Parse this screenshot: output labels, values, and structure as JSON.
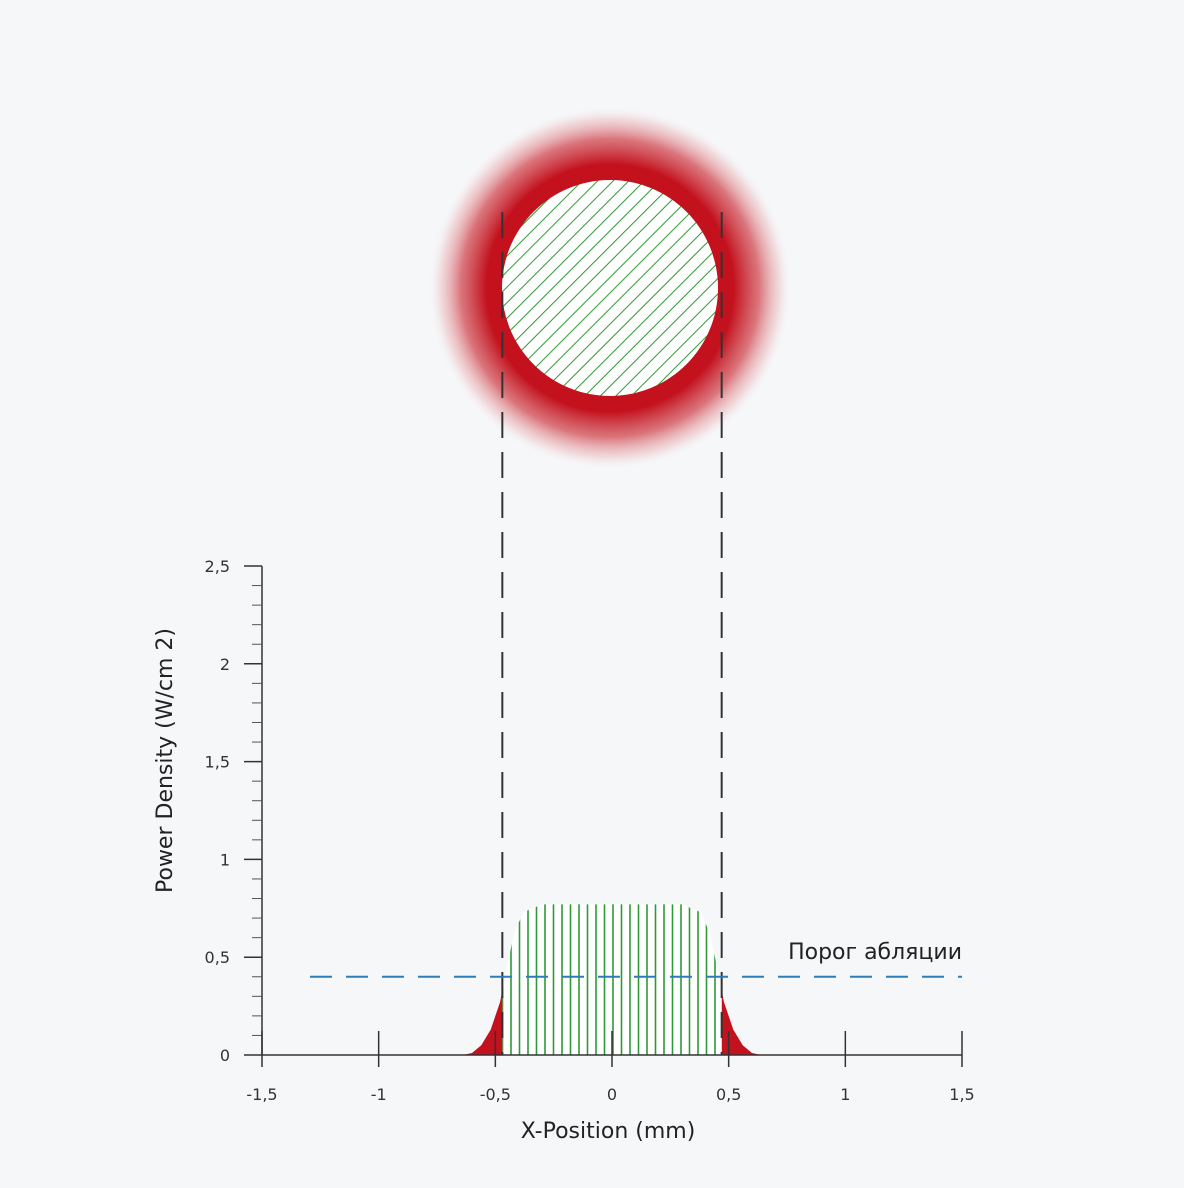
{
  "chart_data": {
    "type": "line",
    "xlabel": "X-Position (mm)",
    "ylabel": "Power Density (W/cm 2)",
    "xlim": [
      -1.5,
      1.5
    ],
    "ylim": [
      0,
      2.5
    ],
    "x_ticks": [
      {
        "value": -1.5,
        "label": "-1,5"
      },
      {
        "value": -1,
        "label": "-1"
      },
      {
        "value": -0.5,
        "label": "-0,5"
      },
      {
        "value": 0,
        "label": "0"
      },
      {
        "value": 0.5,
        "label": "0,5"
      },
      {
        "value": 1,
        "label": "1"
      },
      {
        "value": 1.5,
        "label": "1,5"
      }
    ],
    "y_ticks": [
      {
        "value": 0,
        "label": "0"
      },
      {
        "value": 0.5,
        "label": "0,5"
      },
      {
        "value": 1,
        "label": "1"
      },
      {
        "value": 1.5,
        "label": "1,5"
      },
      {
        "value": 2,
        "label": "2"
      },
      {
        "value": 2.5,
        "label": "2,5"
      }
    ],
    "threshold": {
      "value": 0.4,
      "label": "Порог абляции",
      "color": "#2e7db8"
    },
    "profile": {
      "x": [
        -0.64,
        -0.6,
        -0.56,
        -0.52,
        -0.48,
        -0.45,
        -0.42,
        -0.38,
        -0.3,
        -0.2,
        0,
        0.2,
        0.3,
        0.38,
        0.42,
        0.45,
        0.48,
        0.52,
        0.56,
        0.6,
        0.64
      ],
      "y": [
        0,
        0.01,
        0.05,
        0.13,
        0.27,
        0.45,
        0.62,
        0.73,
        0.77,
        0.77,
        0.77,
        0.77,
        0.77,
        0.73,
        0.62,
        0.45,
        0.27,
        0.13,
        0.05,
        0.01,
        0
      ]
    },
    "ablation_edges": [
      -0.47,
      0.47
    ],
    "colors": {
      "ablated": "#2e9a35",
      "below_threshold": "#c3121e",
      "guide": "#333333"
    }
  }
}
